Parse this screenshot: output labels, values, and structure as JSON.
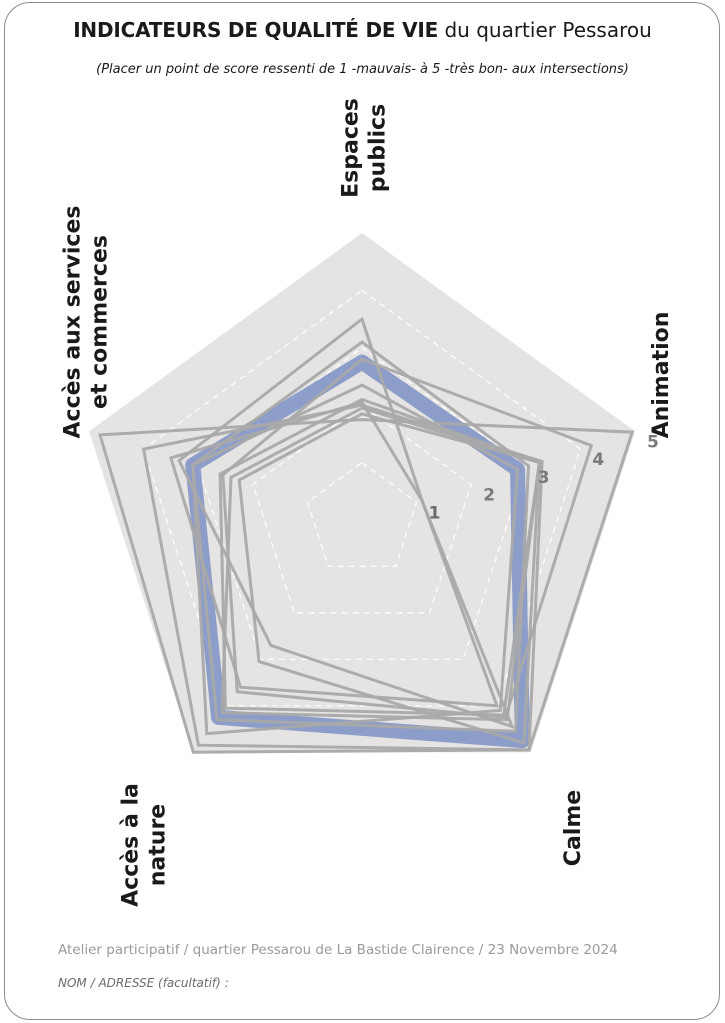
{
  "header": {
    "title_bold": "INDICATEURS DE QUALITÉ DE VIE",
    "title_rest": " du quartier Pessarou",
    "subtitle": "(Placer un point de score ressenti de 1 -mauvais- à 5 -très bon- aux intersections)"
  },
  "footer": {
    "workshop_line": "Atelier participatif  /  quartier Pessarou de La Bastide Clairence  /  23 Novembre 2024",
    "name_line": "NOM / ADRESSE (facultatif) :"
  },
  "colors": {
    "background_pentagon": "#e5e4e3",
    "response_line": "#a9a9a9",
    "average_band": "#6f86c0",
    "grid_line": "#ffffff",
    "axis_text": "#1a1a1a",
    "scale_text": "#7a7a7a"
  },
  "chart_data": {
    "type": "radar",
    "title": "INDICATEURS DE QUALITÉ DE VIE du quartier Pessarou",
    "axes": [
      {
        "label_lines": [
          "Espaces",
          "publics"
        ]
      },
      {
        "label_lines": [
          "Animation"
        ]
      },
      {
        "label_lines": [
          "Calme"
        ]
      },
      {
        "label_lines": [
          "Accès à la",
          "nature"
        ]
      },
      {
        "label_lines": [
          "Accès aux services",
          "et commerces"
        ]
      }
    ],
    "scale": {
      "min": 1,
      "max": 5,
      "ticks": [
        1,
        2,
        3,
        4,
        5
      ]
    },
    "series": [
      {
        "values": [
          2.05,
          1.1,
          4.0,
          3.6,
          3.5
        ]
      },
      {
        "values": [
          2.1,
          3.25,
          4.2,
          4.05,
          2.6
        ]
      },
      {
        "values": [
          2.35,
          2.85,
          4.1,
          4.6,
          3.1
        ]
      },
      {
        "values": [
          2.8,
          4.2,
          4.25,
          3.7,
          2.55
        ]
      },
      {
        "values": [
          1.75,
          4.95,
          4.95,
          5.0,
          4.8
        ]
      },
      {
        "values": [
          2.0,
          3.3,
          4.95,
          4.85,
          4.0
        ]
      },
      {
        "values": [
          3.5,
          1.1,
          4.45,
          2.7,
          3.35
        ]
      },
      {
        "values": [
          1.85,
          3.25,
          4.8,
          3.05,
          2.25
        ]
      },
      {
        "values": [
          3.1,
          3.05,
          4.55,
          4.3,
          3.1
        ]
      },
      {
        "values": [
          1.95,
          3.25,
          4.3,
          4.15,
          2.4
        ]
      }
    ],
    "average": {
      "values": [
        2.75,
        2.85,
        4.75,
        4.25,
        3.1
      ]
    }
  }
}
